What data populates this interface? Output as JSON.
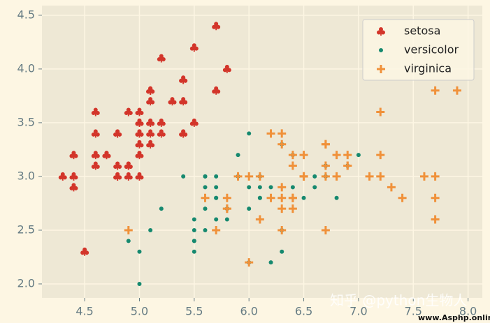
{
  "chart_data": {
    "type": "scatter",
    "xlim": [
      4.11,
      8.13
    ],
    "ylim": [
      1.87,
      4.59
    ],
    "xticks": [
      4.5,
      {
        "value": 5,
        "label": "5.0"
      },
      5.5,
      {
        "value": 6,
        "label": "6.0"
      },
      6.5,
      {
        "value": 7,
        "label": "7.0"
      },
      7.5,
      {
        "value": 8,
        "label": "8.0"
      }
    ],
    "yticks": [
      {
        "value": 2,
        "label": "2.0"
      },
      2.5,
      {
        "value": 3,
        "label": "3.0"
      },
      3.5,
      {
        "value": 4,
        "label": "4.0"
      },
      4.5
    ],
    "grid": true,
    "legend": "upper right",
    "series": [
      {
        "name": "setosa",
        "color": "#d3352a",
        "marker": "club",
        "x": [
          5.1,
          4.9,
          4.7,
          4.6,
          5.0,
          5.4,
          4.6,
          5.0,
          4.4,
          4.9,
          5.4,
          4.8,
          4.8,
          4.3,
          5.8,
          5.7,
          5.4,
          5.1,
          5.7,
          5.1,
          5.4,
          5.1,
          4.6,
          5.1,
          4.8,
          5.0,
          5.0,
          5.2,
          5.2,
          4.7,
          4.8,
          5.4,
          5.2,
          5.5,
          4.9,
          5.0,
          5.5,
          4.9,
          4.4,
          5.1,
          5.0,
          4.5,
          4.4,
          5.0,
          5.1,
          4.8,
          5.1,
          4.6,
          5.3,
          5.0
        ],
        "values": [
          3.5,
          3.0,
          3.2,
          3.1,
          3.6,
          3.9,
          3.4,
          3.4,
          2.9,
          3.1,
          3.7,
          3.4,
          3.0,
          3.0,
          4.0,
          4.4,
          3.9,
          3.5,
          3.8,
          3.8,
          3.4,
          3.7,
          3.6,
          3.3,
          3.4,
          3.0,
          3.4,
          3.5,
          3.4,
          3.2,
          3.1,
          3.4,
          4.1,
          4.2,
          3.1,
          3.2,
          3.5,
          3.6,
          3.0,
          3.4,
          3.5,
          2.3,
          3.2,
          3.5,
          3.8,
          3.0,
          3.8,
          3.2,
          3.7,
          3.3
        ]
      },
      {
        "name": "versicolor",
        "color": "#16896f",
        "marker": "dot",
        "x": [
          7.0,
          6.4,
          6.9,
          5.5,
          6.5,
          5.7,
          6.3,
          4.9,
          6.6,
          5.2,
          5.0,
          5.9,
          6.0,
          6.1,
          5.6,
          6.7,
          5.6,
          5.8,
          6.2,
          5.6,
          5.9,
          6.1,
          6.3,
          6.1,
          6.4,
          6.6,
          6.8,
          6.7,
          6.0,
          5.7,
          5.5,
          5.5,
          5.8,
          6.0,
          5.4,
          6.0,
          6.7,
          6.3,
          5.6,
          5.5,
          5.5,
          6.1,
          5.8,
          5.0,
          5.6,
          5.7,
          5.7,
          6.2,
          5.1,
          5.7
        ],
        "values": [
          3.2,
          3.2,
          3.1,
          2.3,
          2.8,
          2.8,
          3.3,
          2.4,
          2.9,
          2.7,
          2.0,
          3.0,
          2.2,
          2.9,
          2.9,
          3.1,
          3.0,
          2.7,
          2.2,
          2.5,
          3.2,
          2.8,
          2.5,
          2.8,
          2.9,
          3.0,
          2.8,
          3.0,
          2.9,
          2.6,
          2.4,
          2.4,
          2.7,
          2.7,
          3.0,
          3.4,
          3.1,
          2.3,
          3.0,
          2.5,
          2.6,
          3.0,
          2.6,
          2.3,
          2.7,
          3.0,
          2.9,
          2.9,
          2.5,
          2.8
        ]
      },
      {
        "name": "virginica",
        "color": "#f0913a",
        "marker": "plus",
        "x": [
          6.3,
          5.8,
          7.1,
          6.3,
          6.5,
          7.6,
          4.9,
          7.3,
          6.7,
          7.2,
          6.5,
          6.4,
          6.8,
          5.7,
          5.8,
          6.4,
          6.5,
          7.7,
          7.7,
          6.0,
          6.9,
          5.6,
          7.7,
          6.3,
          6.7,
          7.2,
          6.2,
          6.1,
          6.4,
          7.2,
          7.4,
          7.9,
          6.4,
          6.3,
          6.1,
          7.7,
          6.3,
          6.4,
          6.0,
          6.9,
          6.7,
          6.9,
          5.8,
          6.8,
          6.7,
          6.7,
          6.3,
          6.5,
          6.2,
          5.9
        ],
        "values": [
          3.3,
          2.7,
          3.0,
          2.9,
          3.0,
          3.0,
          2.5,
          2.9,
          2.5,
          3.6,
          3.2,
          2.7,
          3.0,
          2.5,
          2.8,
          3.2,
          3.0,
          3.8,
          2.6,
          2.2,
          3.2,
          2.8,
          2.8,
          2.7,
          3.3,
          3.2,
          2.8,
          3.0,
          2.8,
          3.0,
          2.8,
          3.8,
          2.8,
          2.8,
          2.6,
          3.0,
          3.4,
          3.1,
          3.0,
          3.1,
          3.1,
          3.1,
          2.7,
          3.2,
          3.3,
          3.0,
          2.5,
          3.0,
          3.4,
          3.0
        ]
      }
    ],
    "annotations": [
      "知乎 @python生物人",
      "www.Asphp.online"
    ]
  }
}
